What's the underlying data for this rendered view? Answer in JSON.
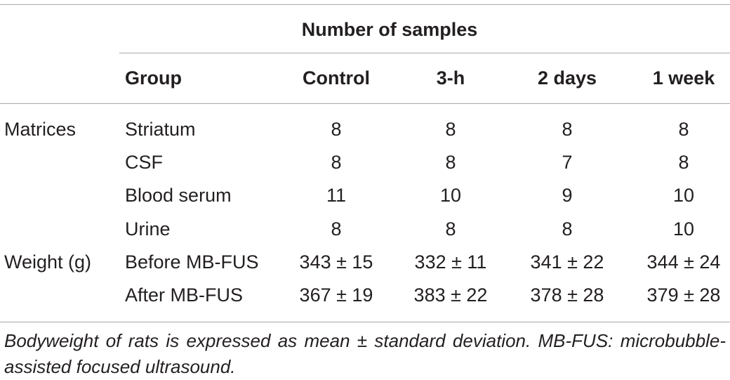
{
  "table": {
    "spanner": "Number of samples",
    "headers": {
      "group": "Group",
      "cols": [
        "Control",
        "3-h",
        "2 days",
        "1 week"
      ]
    },
    "rows": [
      {
        "category": "Matrices",
        "group": "Striatum",
        "values": [
          "8",
          "8",
          "8",
          "8"
        ]
      },
      {
        "category": "",
        "group": "CSF",
        "values": [
          "8",
          "8",
          "7",
          "8"
        ]
      },
      {
        "category": "",
        "group": "Blood serum",
        "values": [
          "11",
          "10",
          "9",
          "10"
        ]
      },
      {
        "category": "",
        "group": "Urine",
        "values": [
          "8",
          "8",
          "8",
          "10"
        ]
      },
      {
        "category": "Weight (g)",
        "group": "Before MB-FUS",
        "values": [
          "343 ± 15",
          "332 ± 11",
          "341 ± 22",
          "344 ± 24"
        ]
      },
      {
        "category": "",
        "group": "After MB-FUS",
        "values": [
          "367 ± 19",
          "383 ± 22",
          "378 ± 28",
          "379 ± 28"
        ]
      }
    ],
    "footnote": "Bodyweight of rats is expressed as mean ± standard deviation. MB-FUS: microbubble-assisted focused ultrasound."
  }
}
